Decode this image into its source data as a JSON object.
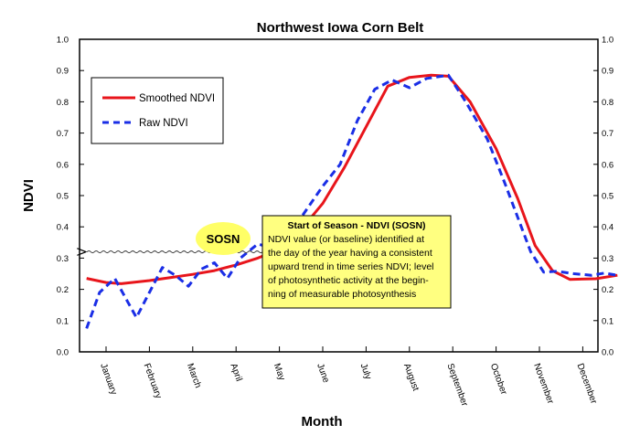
{
  "chart_data": {
    "type": "line",
    "title": "Northwest Iowa Corn Belt",
    "xlabel": "Month",
    "ylabel": "NDVI",
    "ylim": [
      0.0,
      1.0
    ],
    "yticks": [
      "0.0",
      "0.1",
      "0.2",
      "0.3",
      "0.4",
      "0.5",
      "0.6",
      "0.7",
      "0.8",
      "0.9",
      "1.0"
    ],
    "categories": [
      "January",
      "February",
      "March",
      "April",
      "May",
      "June",
      "July",
      "August",
      "September",
      "October",
      "November",
      "December"
    ],
    "series": [
      {
        "name": "Smoothed NDVI",
        "style": "solid",
        "color": "#e8151b",
        "points": [
          [
            -0.45,
            0.235
          ],
          [
            0.0,
            0.222
          ],
          [
            0.35,
            0.218
          ],
          [
            1.0,
            0.228
          ],
          [
            1.5,
            0.238
          ],
          [
            2.0,
            0.248
          ],
          [
            2.5,
            0.26
          ],
          [
            3.0,
            0.278
          ],
          [
            3.5,
            0.3
          ],
          [
            3.9,
            0.322
          ],
          [
            4.4,
            0.375
          ],
          [
            5.0,
            0.475
          ],
          [
            5.5,
            0.59
          ],
          [
            6.0,
            0.72
          ],
          [
            6.5,
            0.85
          ],
          [
            7.0,
            0.878
          ],
          [
            7.5,
            0.885
          ],
          [
            7.9,
            0.882
          ],
          [
            8.4,
            0.8
          ],
          [
            9.0,
            0.65
          ],
          [
            9.5,
            0.49
          ],
          [
            9.9,
            0.34
          ],
          [
            10.3,
            0.26
          ],
          [
            10.7,
            0.232
          ],
          [
            11.3,
            0.234
          ],
          [
            11.8,
            0.245
          ]
        ]
      },
      {
        "name": "Raw NDVI",
        "style": "dashed",
        "color": "#1a2ee6",
        "points": [
          [
            -0.45,
            0.075
          ],
          [
            -0.15,
            0.19
          ],
          [
            0.2,
            0.235
          ],
          [
            0.5,
            0.16
          ],
          [
            0.7,
            0.11
          ],
          [
            1.0,
            0.19
          ],
          [
            1.3,
            0.27
          ],
          [
            1.6,
            0.245
          ],
          [
            1.9,
            0.21
          ],
          [
            2.2,
            0.265
          ],
          [
            2.5,
            0.285
          ],
          [
            2.8,
            0.235
          ],
          [
            3.1,
            0.3
          ],
          [
            3.5,
            0.345
          ],
          [
            3.9,
            0.33
          ],
          [
            4.4,
            0.41
          ],
          [
            5.0,
            0.53
          ],
          [
            5.4,
            0.6
          ],
          [
            5.8,
            0.74
          ],
          [
            6.2,
            0.84
          ],
          [
            6.6,
            0.87
          ],
          [
            7.0,
            0.845
          ],
          [
            7.4,
            0.875
          ],
          [
            7.9,
            0.885
          ],
          [
            8.3,
            0.8
          ],
          [
            8.8,
            0.68
          ],
          [
            9.2,
            0.54
          ],
          [
            9.5,
            0.43
          ],
          [
            9.8,
            0.32
          ],
          [
            10.1,
            0.255
          ],
          [
            10.4,
            0.258
          ],
          [
            10.8,
            0.25
          ],
          [
            11.2,
            0.245
          ],
          [
            11.5,
            0.252
          ],
          [
            11.8,
            0.245
          ]
        ]
      }
    ],
    "legend": {
      "position": "top-left",
      "entries": [
        "Smoothed NDVI",
        "Raw NDVI"
      ]
    },
    "sosn_marker": {
      "label": "SOSN",
      "x": 3.95,
      "value": 0.32
    },
    "annotation": {
      "title": "Start of Season - NDVI (SOSN)",
      "lines": [
        "NDVI value (or baseline) identified at",
        "the day of the year having a consistent",
        "upward trend in time series NDVI; level",
        "of photosynthetic activity at the begin-",
        "ning of measurable photosynthesis"
      ],
      "background": "#ffff80"
    },
    "grid": false
  }
}
